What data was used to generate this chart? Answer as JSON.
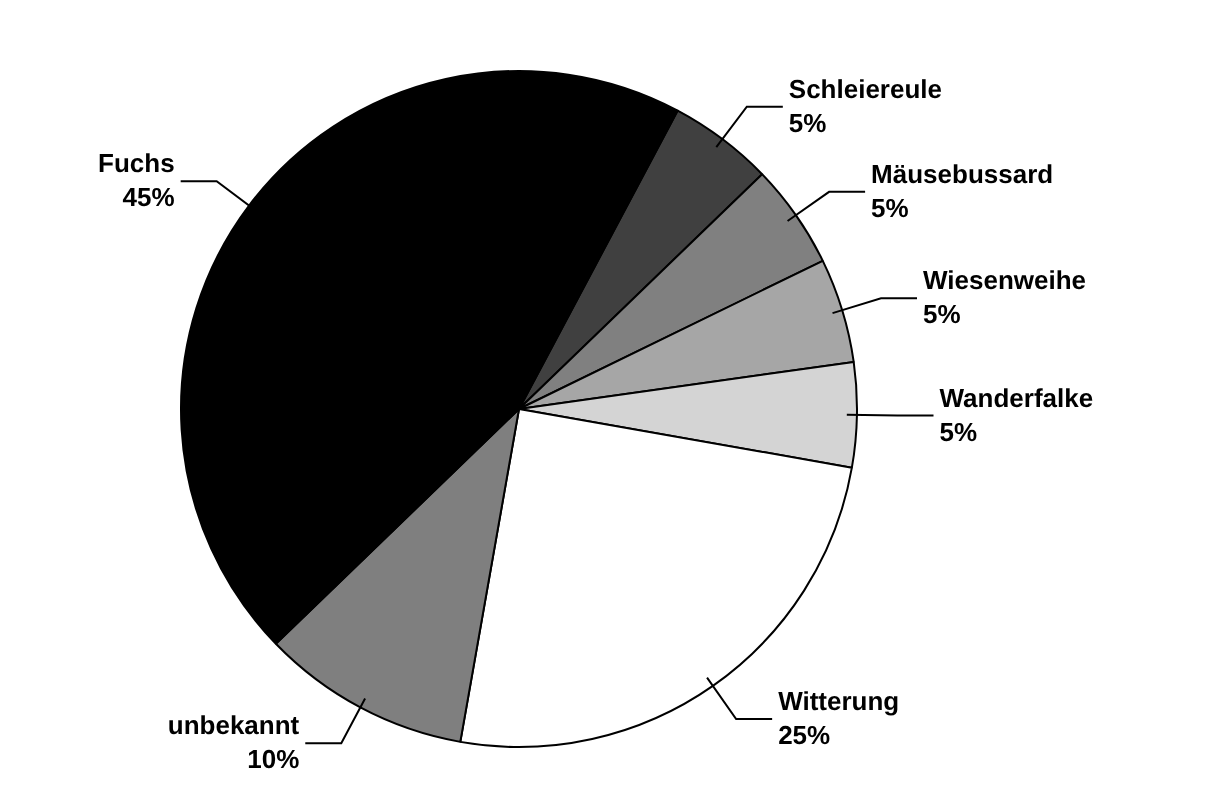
{
  "chart_data": {
    "type": "pie",
    "categories": [
      "Schleiereule",
      "Mäusebussard",
      "Wiesenweihe",
      "Wanderfalke",
      "Witterung",
      "unbekannt",
      "Fuchs"
    ],
    "values": [
      5,
      5,
      5,
      5,
      25,
      10,
      45
    ],
    "colors": [
      "#404040",
      "#808080",
      "#a6a6a6",
      "#d4d4d4",
      "#ffffff",
      "#7f7f7f",
      "#000000"
    ],
    "value_labels": [
      "5%",
      "5%",
      "5%",
      "5%",
      "25%",
      "10%",
      "45%"
    ],
    "legend": false
  }
}
